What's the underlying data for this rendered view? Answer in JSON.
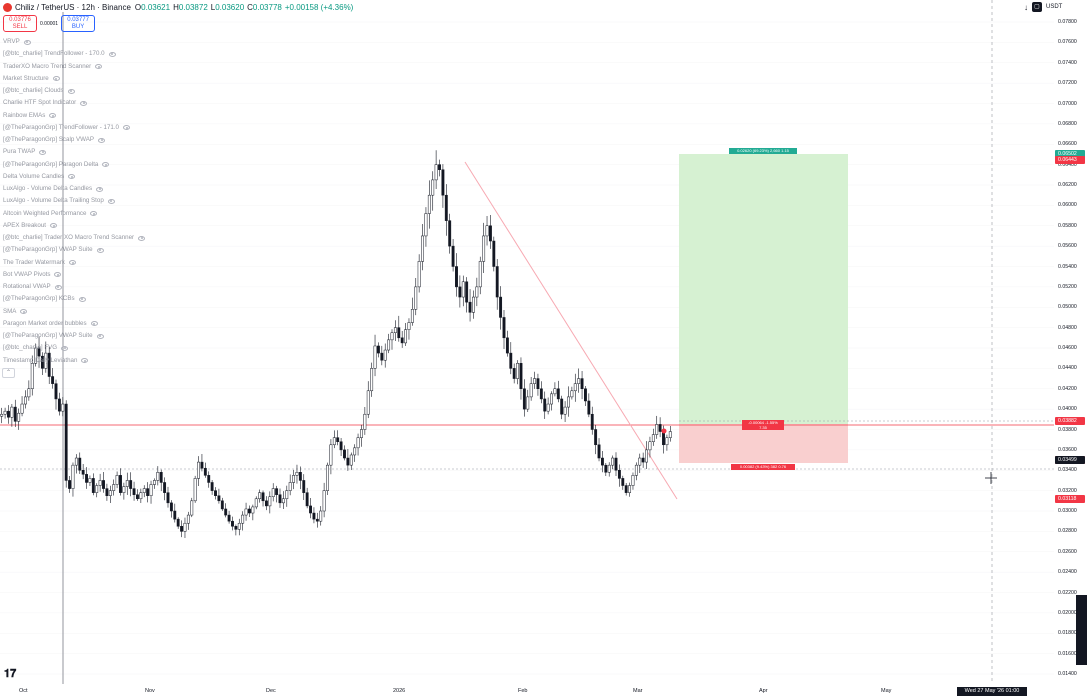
{
  "header": {
    "symbol": "Chiliz / TetherUS · 12h · Binance",
    "o_label": "O",
    "o": "0.03621",
    "h_label": "H",
    "h": "0.03872",
    "l_label": "L",
    "l": "0.03620",
    "c_label": "C",
    "c": "0.03778",
    "change": "+0.00158 (+4.36%)"
  },
  "trade": {
    "sell_price": "0.03776",
    "sell_label": "SELL",
    "spread": "0.00001",
    "buy_price": "0.03777",
    "buy_label": "BUY"
  },
  "indicators": [
    "VRVP",
    "[@btc_charlie] TrendFollower - 170.0",
    "TraderXO Macro Trend Scanner",
    "Market Structure",
    "[@btc_charlie] Clouds",
    "Charlie HTF Spot Indicator",
    "Rainbow EMAs",
    "[@TheParagonGrp] TrendFollower - 171.0",
    "[@TheParagonGrp] Scalp VWAP",
    "Pura TWAP",
    "[@TheParagonGrp] Paragon Delta",
    "Delta Volume Candles",
    "LuxAlgo - Volume Delta Candles",
    "LuxAlgo - Volume Delta Trailing Stop",
    "Altcoin Weighted Performance",
    "APEX Breakout",
    "[@btc_charlie] Trader XO Macro Trend Scanner",
    "[@TheParagonGrp] VWAP Suite",
    "The Trader Watermark",
    "Bot VWAP Pivots",
    "Rotational VWAP",
    "[@TheParagonGrp] KCBs",
    "SMA",
    "Paragon Market order bubbles",
    "[@TheParagonGrp] VWAP Suite",
    "[@btc_charlie] FVG",
    "Timestamp Daily Leviathan"
  ],
  "topright": {
    "currency": "USDT"
  },
  "price_axis": {
    "ticks": [
      "0.07800",
      "0.07600",
      "0.07400",
      "0.07200",
      "0.07000",
      "0.06800",
      "0.06600",
      "0.06400",
      "0.06200",
      "0.06000",
      "0.05800",
      "0.05600",
      "0.05400",
      "0.05200",
      "0.05000",
      "0.04800",
      "0.04600",
      "0.04400",
      "0.04200",
      "0.04000",
      "0.03800",
      "0.03600",
      "0.03400",
      "0.03200",
      "0.03000",
      "0.02800",
      "0.02600",
      "0.02400",
      "0.02200",
      "0.02000",
      "0.01800",
      "0.01600",
      "0.01400"
    ],
    "labels": [
      {
        "text": "0.06502",
        "color": "#22ab94"
      },
      {
        "text": "0.06443",
        "color": "#f23645"
      },
      {
        "text": "0.03882",
        "color": "#f23645"
      },
      {
        "text": "0.03498",
        "color": "#f23645"
      },
      {
        "text": "0.03499",
        "color": "#131722"
      },
      {
        "text": "0.03118",
        "color": "#f23645"
      }
    ]
  },
  "time_axis": {
    "ticks": [
      "Oct",
      "Nov",
      "Dec",
      "2026",
      "Feb",
      "Mar",
      "Apr",
      "May"
    ],
    "crosshair": "Wed 27 May '26   01:00"
  },
  "position": {
    "target_label": "0.02620 (69.23%) 2,660 1.15",
    "center_label": "-0.00064 -1.55%",
    "center_label2": "7.35",
    "stop_label": "0.00382 (9.43%) 382 0.76"
  },
  "chart_data": {
    "type": "candlestick",
    "symbol": "CHZUSDT",
    "interval": "12h",
    "x_ticks": [
      "Oct",
      "Nov",
      "Dec",
      "2026",
      "Feb",
      "Mar",
      "Apr",
      "May"
    ],
    "y_range": [
      0.014,
      0.079
    ],
    "close_series": [
      0.0395,
      0.0398,
      0.0392,
      0.0402,
      0.0388,
      0.0396,
      0.0405,
      0.0412,
      0.042,
      0.0445,
      0.046,
      0.0452,
      0.044,
      0.0455,
      0.0432,
      0.0425,
      0.041,
      0.0398,
      0.0405,
      0.033,
      0.0322,
      0.0345,
      0.0352,
      0.034,
      0.0336,
      0.0328,
      0.0332,
      0.0318,
      0.0325,
      0.033,
      0.0322,
      0.0315,
      0.032,
      0.0326,
      0.0335,
      0.0318,
      0.0324,
      0.033,
      0.0322,
      0.0316,
      0.0312,
      0.0318,
      0.0322,
      0.0315,
      0.0326,
      0.033,
      0.0338,
      0.0328,
      0.0318,
      0.0308,
      0.03,
      0.0292,
      0.0285,
      0.028,
      0.0288,
      0.0296,
      0.031,
      0.0332,
      0.0348,
      0.0342,
      0.0335,
      0.0328,
      0.032,
      0.0315,
      0.031,
      0.0302,
      0.0296,
      0.029,
      0.0285,
      0.0282,
      0.0288,
      0.0296,
      0.0302,
      0.0298,
      0.0304,
      0.0312,
      0.0318,
      0.031,
      0.0305,
      0.0314,
      0.0322,
      0.0316,
      0.0308,
      0.0312,
      0.032,
      0.0328,
      0.0335,
      0.0338,
      0.033,
      0.0318,
      0.0305,
      0.0298,
      0.0292,
      0.029,
      0.03,
      0.032,
      0.0345,
      0.0365,
      0.0372,
      0.0368,
      0.036,
      0.0352,
      0.0345,
      0.0355,
      0.0362,
      0.0372,
      0.038,
      0.0395,
      0.0418,
      0.044,
      0.0462,
      0.0455,
      0.0448,
      0.0458,
      0.0468,
      0.0475,
      0.048,
      0.047,
      0.0465,
      0.0478,
      0.0485,
      0.0498,
      0.052,
      0.0545,
      0.057,
      0.0592,
      0.061,
      0.0625,
      0.064,
      0.0635,
      0.061,
      0.0585,
      0.056,
      0.054,
      0.052,
      0.051,
      0.0525,
      0.0505,
      0.0495,
      0.051,
      0.052,
      0.0545,
      0.057,
      0.058,
      0.0565,
      0.054,
      0.051,
      0.049,
      0.047,
      0.0455,
      0.044,
      0.043,
      0.0445,
      0.042,
      0.04,
      0.0412,
      0.0425,
      0.043,
      0.042,
      0.041,
      0.0398,
      0.0405,
      0.0415,
      0.042,
      0.041,
      0.0395,
      0.0402,
      0.0412,
      0.0418,
      0.0425,
      0.043,
      0.042,
      0.0408,
      0.0395,
      0.038,
      0.0365,
      0.0352,
      0.0345,
      0.0338,
      0.0345,
      0.0352,
      0.034,
      0.0332,
      0.0325,
      0.0318,
      0.0325,
      0.0335,
      0.0345,
      0.0352,
      0.0348,
      0.036,
      0.0368,
      0.0375,
      0.0385,
      0.0378,
      0.0365,
      0.0372,
      0.0378
    ]
  }
}
